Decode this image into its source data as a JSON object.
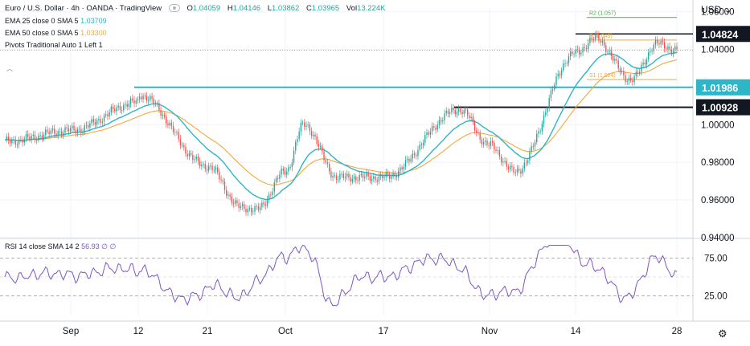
{
  "header": {
    "symbol_title": "Euro / U.S. Dollar · 4h · OANDA · TradingView",
    "ohlc": [
      {
        "k": "O",
        "v": "1.04059"
      },
      {
        "k": "H",
        "v": "1.04146"
      },
      {
        "k": "L",
        "v": "1.03862"
      },
      {
        "k": "C",
        "v": "1.03965"
      },
      {
        "k": "Vol",
        "v": "13.224K"
      }
    ],
    "currency": "USD"
  },
  "indicators": {
    "ema25": {
      "label": "EMA 25 close 0 SMA 5",
      "value": "1.03709",
      "color": "#2db5c8"
    },
    "ema50": {
      "label": "EMA 50 close 0 SMA 5",
      "value": "1.03300",
      "color": "#f2a93b"
    },
    "pivots": {
      "label": "Pivots Traditional Auto 1 Left 1"
    },
    "rsi": {
      "label": "RSI 14 close SMA 14 2",
      "value": "56.93",
      "extra1": "∅",
      "extra2": "∅",
      "color": "#7e57c2"
    }
  },
  "price_axis": {
    "ticks": [
      "1.06000",
      "1.04000",
      "1.00000",
      "0.98000",
      "0.96000",
      "0.94000"
    ],
    "badges": [
      {
        "label": "1.04824",
        "style": "dark"
      },
      {
        "label": "1.01986",
        "style": "teal"
      },
      {
        "label": "1.00928",
        "style": "dark"
      }
    ]
  },
  "rsi_axis": {
    "ticks": [
      "75.00",
      "25.00"
    ]
  },
  "time_axis": {
    "ticks": [
      "Sep",
      "12",
      "21",
      "Oct",
      "17",
      "Nov",
      "14",
      "28"
    ]
  },
  "pivot_labels": {
    "r2": "R2 (1.057)",
    "p": "P (1.045)",
    "s1": "S1 (1.024)"
  },
  "chart_data": {
    "type": "candlestick",
    "title": "Euro / U.S. Dollar · 4h · OANDA · TradingView",
    "y_range": [
      0.94,
      1.062
    ],
    "x_ticks": [
      "Sep",
      "12",
      "21",
      "Oct",
      "17",
      "Nov",
      "14",
      "28"
    ],
    "waypoints": [
      {
        "t": "Sep",
        "close": 0.997
      },
      {
        "t": "12",
        "close": 1.012
      },
      {
        "t": "21",
        "close": 0.978
      },
      {
        "t": "Oct",
        "close": 0.975
      },
      {
        "t": "17",
        "close": 0.972
      },
      {
        "t": "Nov",
        "close": 0.989
      },
      {
        "t": "14",
        "close": 1.038
      },
      {
        "t": "28",
        "close": 1.03965
      }
    ],
    "horizontal_levels": [
      1.04824,
      1.01986,
      1.00928
    ],
    "pivots": {
      "R2": 1.057,
      "P": 1.045,
      "S1": 1.024
    },
    "rsi": {
      "range": [
        0,
        100
      ],
      "levels": [
        75,
        25
      ],
      "last": 56.93
    },
    "colors": {
      "up": "#26a69a",
      "down": "#ef5350",
      "ema25": "#2db5c8",
      "ema50": "#f2a93b",
      "rsi": "#7e57c2",
      "teal_line": "#2db5c8",
      "black_line": "#131722",
      "pivot_r2": "#4caf50",
      "pivot_p": "#f2a93b"
    }
  }
}
